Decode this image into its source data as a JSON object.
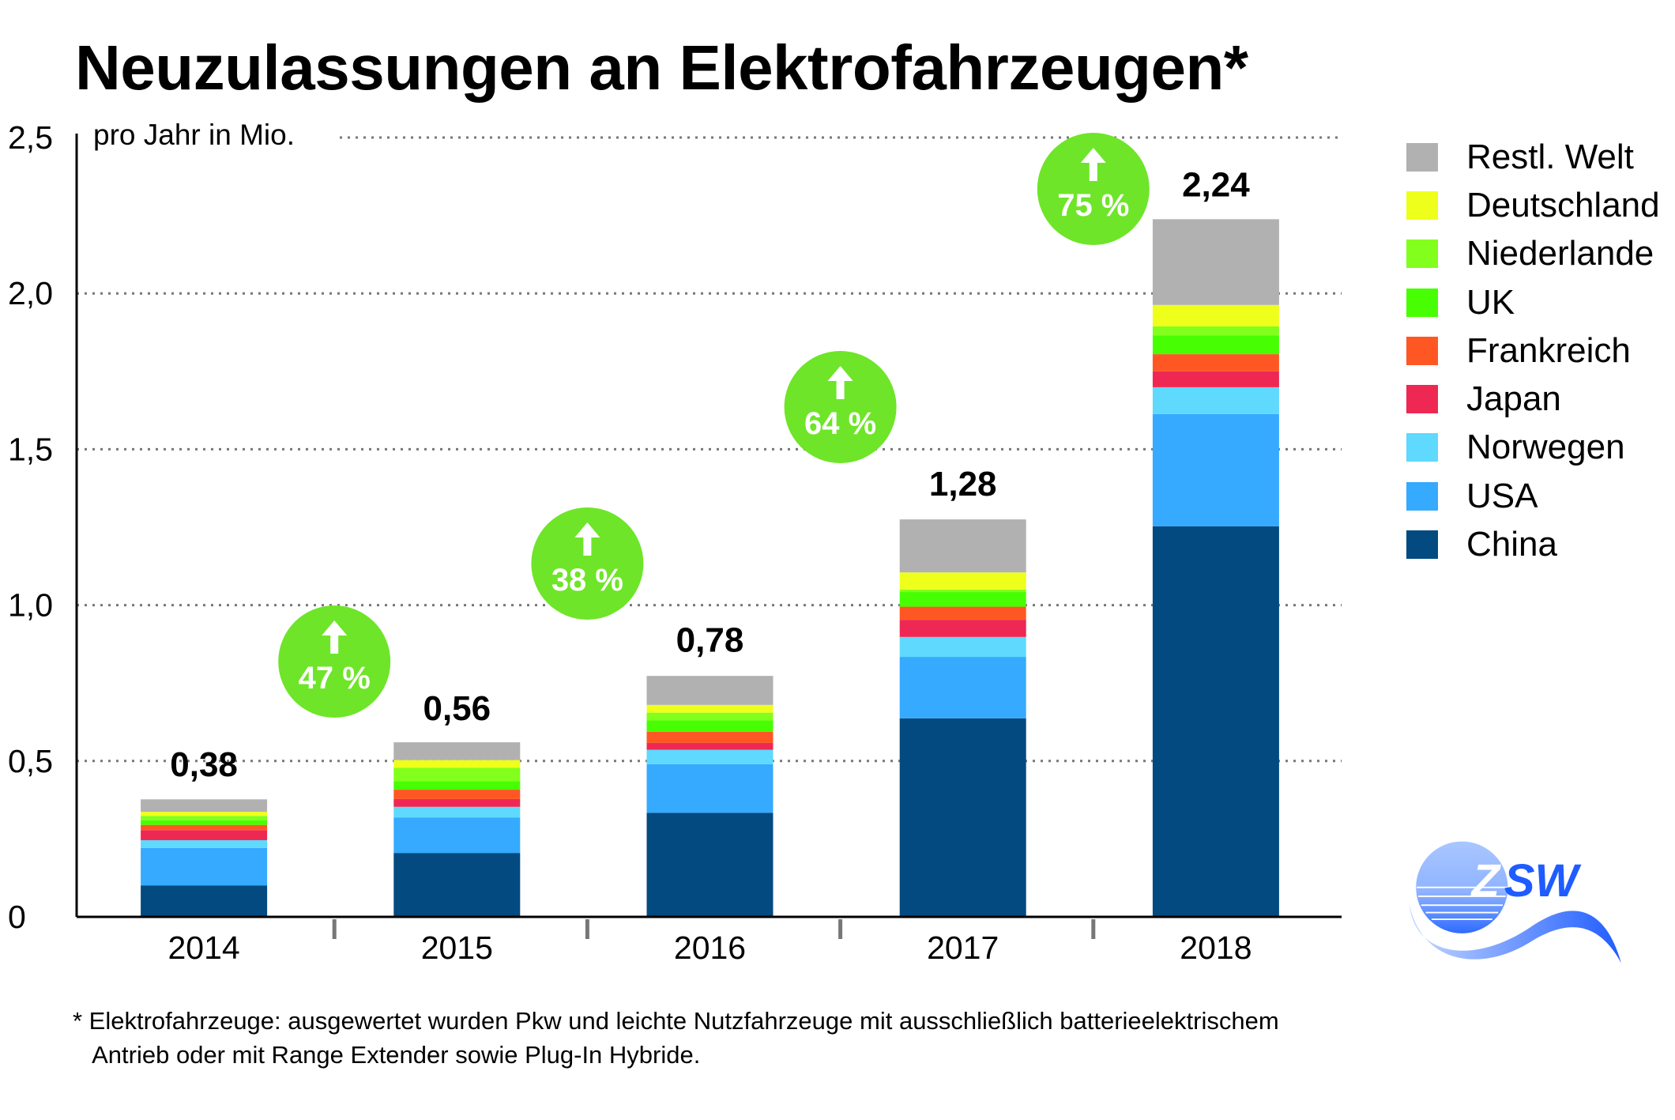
{
  "title": "Neuzulassungen an Elektrofahrzeugen*",
  "unit_label": "pro Jahr in Mio.",
  "footnote": "* Elektrofahrzeuge: ausgewertet wurden Pkw und leichte Nutzfahrzeuge mit ausschließlich batterieelektrischem\n   Antrieb oder mit Range Extender sowie Plug-In Hybride.",
  "logo": {
    "text": "ZSW",
    "icon": "zsw-logo-icon"
  },
  "chart_data": {
    "type": "bar",
    "stacked": true,
    "title": "Neuzulassungen an Elektrofahrzeugen*",
    "xlabel": "",
    "ylabel": "pro Jahr in Mio.",
    "categories": [
      "2014",
      "2015",
      "2016",
      "2017",
      "2018"
    ],
    "ylim": [
      0,
      2.5
    ],
    "yticks": [
      0,
      0.5,
      1.0,
      1.5,
      2.0,
      2.5
    ],
    "ytick_labels": [
      "0",
      "0,5",
      "1,0",
      "1,5",
      "2,0",
      "2,5"
    ],
    "grid": true,
    "legend_position": "right",
    "series": [
      {
        "name": "China",
        "color": "#034a80",
        "values": [
          0.101,
          0.205,
          0.334,
          0.637,
          1.253
        ]
      },
      {
        "name": "USA",
        "color": "#35aaff",
        "values": [
          0.12,
          0.114,
          0.156,
          0.197,
          0.36
        ]
      },
      {
        "name": "Norwegen",
        "color": "#5fd9fd",
        "values": [
          0.025,
          0.034,
          0.046,
          0.064,
          0.086
        ]
      },
      {
        "name": "Japan",
        "color": "#ee2853",
        "values": [
          0.032,
          0.025,
          0.022,
          0.055,
          0.051
        ]
      },
      {
        "name": "Frankreich",
        "color": "#ff5723",
        "values": [
          0.017,
          0.03,
          0.036,
          0.042,
          0.055
        ]
      },
      {
        "name": "UK",
        "color": "#47ff02",
        "values": [
          0.015,
          0.027,
          0.036,
          0.047,
          0.06
        ]
      },
      {
        "name": "Niederlande",
        "color": "#82ff1c",
        "values": [
          0.014,
          0.043,
          0.025,
          0.008,
          0.029
        ]
      },
      {
        "name": "Deutschland",
        "color": "#eeff1b",
        "values": [
          0.013,
          0.025,
          0.025,
          0.055,
          0.069
        ]
      },
      {
        "name": "Restl. Welt",
        "color": "#b1b1b1",
        "values": [
          0.04,
          0.057,
          0.093,
          0.17,
          0.275
        ]
      }
    ],
    "totals": [
      0.38,
      0.56,
      0.78,
      1.28,
      2.24
    ],
    "total_labels": [
      "0,38",
      "0,56",
      "0,78",
      "1,28",
      "2,24"
    ],
    "growth_annotations": [
      {
        "between": [
          "2014",
          "2015"
        ],
        "label": "47 %",
        "icon": "arrow-up-icon",
        "color": "#6ee528"
      },
      {
        "between": [
          "2015",
          "2016"
        ],
        "label": "38 %",
        "icon": "arrow-up-icon",
        "color": "#6ee528"
      },
      {
        "between": [
          "2016",
          "2017"
        ],
        "label": "64 %",
        "icon": "arrow-up-icon",
        "color": "#6ee528"
      },
      {
        "between": [
          "2017",
          "2018"
        ],
        "label": "75 %",
        "icon": "arrow-up-icon",
        "color": "#6ee528"
      }
    ],
    "legend_order": [
      "Restl. Welt",
      "Deutschland",
      "Niederlande",
      "UK",
      "Frankreich",
      "Japan",
      "Norwegen",
      "USA",
      "China"
    ]
  }
}
